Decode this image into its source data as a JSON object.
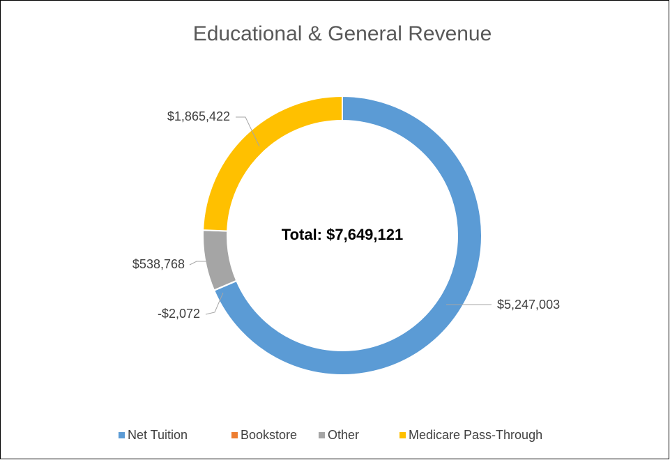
{
  "chart_data": {
    "type": "doughnut",
    "title": "Educational & General Revenue",
    "annotation": "Total: $7,649,121",
    "categories": [
      "Net Tuition",
      "Bookstore",
      "Other",
      "Medicare Pass-Through"
    ],
    "values": [
      5247003,
      -2072,
      538768,
      1865422
    ],
    "value_labels": [
      "$5,247,003",
      "-$2,072",
      "$538,768",
      "$1,865,422"
    ],
    "colors": [
      "#5b9bd5",
      "#ed7d31",
      "#a5a5a5",
      "#ffc000"
    ],
    "legend": "bottom"
  }
}
